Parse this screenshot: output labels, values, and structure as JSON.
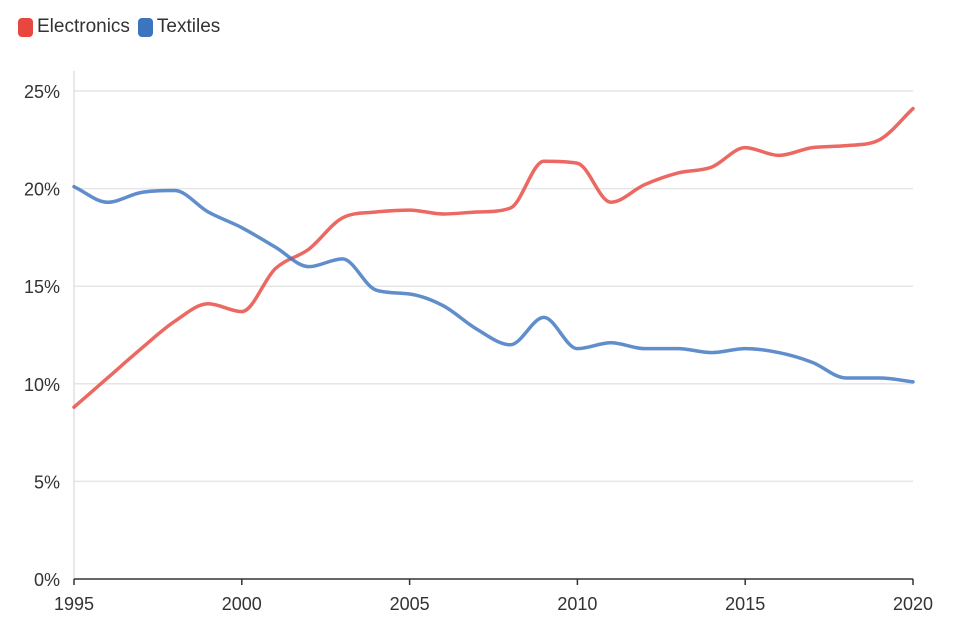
{
  "chart_data": {
    "type": "line",
    "title": "",
    "xlabel": "",
    "ylabel": "",
    "x": [
      1995,
      1996,
      1997,
      1998,
      1999,
      2000,
      2001,
      2002,
      2003,
      2004,
      2005,
      2006,
      2007,
      2008,
      2009,
      2010,
      2011,
      2012,
      2013,
      2014,
      2015,
      2016,
      2017,
      2018,
      2019,
      2020
    ],
    "xlim": [
      1995,
      2020
    ],
    "ylim": [
      0,
      25
    ],
    "x_ticks": [
      "1995",
      "2000",
      "2005",
      "2010",
      "2015",
      "2020"
    ],
    "y_ticks": [
      "0%",
      "5%",
      "10%",
      "15%",
      "20%",
      "25%"
    ],
    "grid": "horizontal",
    "legend_position": "top-left",
    "series": [
      {
        "name": "Electronics",
        "color": "#e8473f",
        "values": [
          8.8,
          10.3,
          11.8,
          13.2,
          14.1,
          13.7,
          15.9,
          16.9,
          18.5,
          18.8,
          18.9,
          18.7,
          18.8,
          19.0,
          21.4,
          21.3,
          19.3,
          20.2,
          20.8,
          21.1,
          22.1,
          21.7,
          22.1,
          22.2,
          22.5,
          24.1
        ]
      },
      {
        "name": "Textiles",
        "color": "#3d74c0",
        "values": [
          20.1,
          19.3,
          19.8,
          19.9,
          18.8,
          18.0,
          17.0,
          16.0,
          16.4,
          14.8,
          14.6,
          14.0,
          12.8,
          12.0,
          13.4,
          11.8,
          12.1,
          11.8,
          11.8,
          11.6,
          11.8,
          11.6,
          11.1,
          10.3,
          10.3,
          10.1
        ]
      }
    ]
  }
}
